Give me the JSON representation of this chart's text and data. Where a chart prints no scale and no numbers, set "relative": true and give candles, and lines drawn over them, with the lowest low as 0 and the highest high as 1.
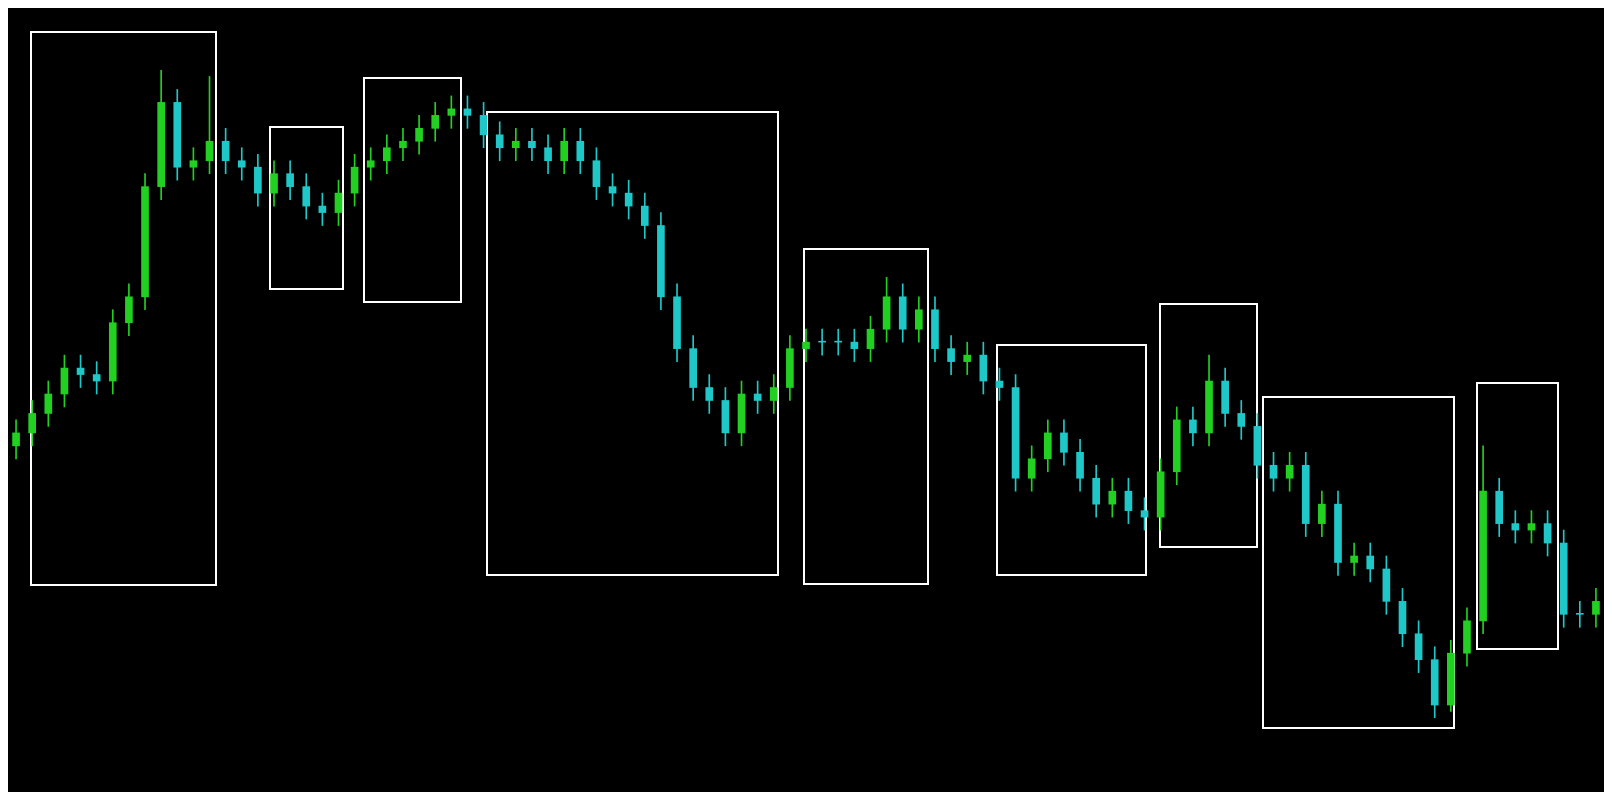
{
  "chart_data": {
    "type": "candlestick",
    "relative": true,
    "grid": false,
    "legend": false,
    "tick_labels": false,
    "colors": [
      "#22d022",
      "#22d022",
      "#22d022",
      "#22d022",
      "#1fc8c8",
      "#1fc8c8",
      "#22d022",
      "#22d022",
      "#22d022",
      "#22d022",
      "#1fc8c8",
      "#22d022",
      "#22d022",
      "#1fc8c8",
      "#1fc8c8",
      "#1fc8c8",
      "#22d022",
      "#1fc8c8",
      "#1fc8c8",
      "#1fc8c8",
      "#22d022",
      "#22d022",
      "#22d022",
      "#22d022",
      "#22d022",
      "#22d022",
      "#22d022",
      "#22d022",
      "#1fc8c8",
      "#1fc8c8",
      "#1fc8c8",
      "#22d022",
      "#1fc8c8",
      "#1fc8c8",
      "#22d022",
      "#1fc8c8",
      "#1fc8c8",
      "#1fc8c8",
      "#1fc8c8",
      "#1fc8c8",
      "#1fc8c8",
      "#1fc8c8",
      "#1fc8c8",
      "#1fc8c8",
      "#1fc8c8",
      "#22d022",
      "#1fc8c8",
      "#22d022",
      "#22d022",
      "#22d022",
      "#1fc8c8",
      "#1fc8c8",
      "#1fc8c8",
      "#22d022",
      "#22d022",
      "#1fc8c8",
      "#22d022",
      "#1fc8c8",
      "#1fc8c8",
      "#22d022",
      "#1fc8c8",
      "#1fc8c8",
      "#1fc8c8",
      "#22d022",
      "#22d022",
      "#1fc8c8",
      "#1fc8c8",
      "#1fc8c8",
      "#22d022",
      "#1fc8c8",
      "#1fc8c8",
      "#22d022",
      "#22d022",
      "#1fc8c8",
      "#22d022",
      "#1fc8c8",
      "#1fc8c8",
      "#1fc8c8",
      "#1fc8c8",
      "#22d022",
      "#1fc8c8",
      "#22d022",
      "#1fc8c8",
      "#22d022",
      "#1fc8c8",
      "#1fc8c8",
      "#1fc8c8",
      "#1fc8c8",
      "#1fc8c8",
      "#22d022",
      "#22d022",
      "#22d022",
      "#1fc8c8",
      "#1fc8c8",
      "#22d022",
      "#1fc8c8",
      "#1fc8c8",
      "#1fc8c8",
      "#22d022"
    ],
    "categories": [
      null,
      null,
      null,
      null,
      null,
      null,
      null,
      null,
      null,
      null,
      null,
      null,
      null,
      null,
      null,
      null,
      null,
      null,
      null,
      null,
      null,
      null,
      null,
      null,
      null,
      null,
      null,
      null,
      null,
      null,
      null,
      null,
      null,
      null,
      null,
      null,
      null,
      null,
      null,
      null,
      null,
      null,
      null,
      null,
      null,
      null,
      null,
      null,
      null,
      null,
      null,
      null,
      null,
      null,
      null,
      null,
      null,
      null,
      null,
      null,
      null,
      null,
      null,
      null,
      null,
      null,
      null,
      null,
      null,
      null,
      null,
      null,
      null,
      null,
      null,
      null,
      null,
      null,
      null,
      null,
      null,
      null,
      null,
      null,
      null,
      null,
      null,
      null,
      null,
      null,
      null,
      null,
      null,
      null,
      null,
      null,
      null,
      null,
      null
    ],
    "ohlc": [
      [
        0.42,
        0.46,
        0.4,
        0.44
      ],
      [
        0.44,
        0.49,
        0.42,
        0.47
      ],
      [
        0.47,
        0.52,
        0.45,
        0.5
      ],
      [
        0.5,
        0.56,
        0.48,
        0.54
      ],
      [
        0.54,
        0.56,
        0.51,
        0.53
      ],
      [
        0.53,
        0.55,
        0.5,
        0.52
      ],
      [
        0.52,
        0.63,
        0.5,
        0.61
      ],
      [
        0.61,
        0.67,
        0.59,
        0.65
      ],
      [
        0.65,
        0.84,
        0.63,
        0.82
      ],
      [
        0.82,
        1,
        0.8,
        0.95
      ],
      [
        0.95,
        0.97,
        0.83,
        0.85
      ],
      [
        0.85,
        0.88,
        0.83,
        0.86
      ],
      [
        0.86,
        0.99,
        0.84,
        0.89
      ],
      [
        0.89,
        0.91,
        0.84,
        0.86
      ],
      [
        0.86,
        0.88,
        0.83,
        0.85
      ],
      [
        0.85,
        0.87,
        0.79,
        0.81
      ],
      [
        0.81,
        0.86,
        0.79,
        0.84
      ],
      [
        0.84,
        0.86,
        0.8,
        0.82
      ],
      [
        0.82,
        0.84,
        0.77,
        0.79
      ],
      [
        0.79,
        0.81,
        0.76,
        0.78
      ],
      [
        0.78,
        0.83,
        0.76,
        0.81
      ],
      [
        0.81,
        0.87,
        0.79,
        0.85
      ],
      [
        0.85,
        0.88,
        0.83,
        0.86
      ],
      [
        0.86,
        0.9,
        0.84,
        0.88
      ],
      [
        0.88,
        0.91,
        0.86,
        0.89
      ],
      [
        0.89,
        0.93,
        0.87,
        0.91
      ],
      [
        0.91,
        0.95,
        0.89,
        0.93
      ],
      [
        0.93,
        0.96,
        0.91,
        0.94
      ],
      [
        0.94,
        0.96,
        0.91,
        0.93
      ],
      [
        0.93,
        0.95,
        0.88,
        0.9
      ],
      [
        0.9,
        0.92,
        0.86,
        0.88
      ],
      [
        0.88,
        0.91,
        0.86,
        0.89
      ],
      [
        0.89,
        0.91,
        0.86,
        0.88
      ],
      [
        0.88,
        0.9,
        0.84,
        0.86
      ],
      [
        0.86,
        0.91,
        0.84,
        0.89
      ],
      [
        0.89,
        0.91,
        0.84,
        0.86
      ],
      [
        0.86,
        0.88,
        0.8,
        0.82
      ],
      [
        0.82,
        0.84,
        0.79,
        0.81
      ],
      [
        0.81,
        0.83,
        0.77,
        0.79
      ],
      [
        0.79,
        0.81,
        0.74,
        0.76
      ],
      [
        0.76,
        0.78,
        0.63,
        0.65
      ],
      [
        0.65,
        0.67,
        0.55,
        0.57
      ],
      [
        0.57,
        0.59,
        0.49,
        0.51
      ],
      [
        0.51,
        0.53,
        0.47,
        0.49
      ],
      [
        0.49,
        0.51,
        0.42,
        0.44
      ],
      [
        0.44,
        0.52,
        0.42,
        0.5
      ],
      [
        0.5,
        0.52,
        0.47,
        0.49
      ],
      [
        0.49,
        0.53,
        0.47,
        0.51
      ],
      [
        0.51,
        0.59,
        0.49,
        0.57
      ],
      [
        0.57,
        0.6,
        0.55,
        0.58
      ],
      [
        0.58,
        0.6,
        0.56,
        0.58
      ],
      [
        0.58,
        0.6,
        0.56,
        0.58
      ],
      [
        0.58,
        0.6,
        0.55,
        0.57
      ],
      [
        0.57,
        0.62,
        0.55,
        0.6
      ],
      [
        0.6,
        0.68,
        0.58,
        0.65
      ],
      [
        0.65,
        0.67,
        0.58,
        0.6
      ],
      [
        0.6,
        0.65,
        0.58,
        0.63
      ],
      [
        0.63,
        0.65,
        0.55,
        0.57
      ],
      [
        0.57,
        0.59,
        0.53,
        0.55
      ],
      [
        0.55,
        0.58,
        0.53,
        0.56
      ],
      [
        0.56,
        0.58,
        0.5,
        0.52
      ],
      [
        0.52,
        0.54,
        0.49,
        0.51
      ],
      [
        0.51,
        0.53,
        0.35,
        0.37
      ],
      [
        0.37,
        0.42,
        0.35,
        0.4
      ],
      [
        0.4,
        0.46,
        0.38,
        0.44
      ],
      [
        0.44,
        0.46,
        0.39,
        0.41
      ],
      [
        0.41,
        0.43,
        0.35,
        0.37
      ],
      [
        0.37,
        0.39,
        0.31,
        0.33
      ],
      [
        0.33,
        0.37,
        0.31,
        0.35
      ],
      [
        0.35,
        0.37,
        0.3,
        0.32
      ],
      [
        0.32,
        0.34,
        0.29,
        0.31
      ],
      [
        0.31,
        0.4,
        0.29,
        0.38
      ],
      [
        0.38,
        0.48,
        0.36,
        0.46
      ],
      [
        0.46,
        0.48,
        0.42,
        0.44
      ],
      [
        0.44,
        0.56,
        0.42,
        0.52
      ],
      [
        0.52,
        0.54,
        0.45,
        0.47
      ],
      [
        0.47,
        0.49,
        0.43,
        0.45
      ],
      [
        0.45,
        0.47,
        0.37,
        0.39
      ],
      [
        0.39,
        0.41,
        0.35,
        0.37
      ],
      [
        0.37,
        0.41,
        0.35,
        0.39
      ],
      [
        0.39,
        0.41,
        0.28,
        0.3
      ],
      [
        0.3,
        0.35,
        0.28,
        0.33
      ],
      [
        0.33,
        0.35,
        0.22,
        0.24
      ],
      [
        0.24,
        0.27,
        0.22,
        0.25
      ],
      [
        0.25,
        0.27,
        0.21,
        0.23
      ],
      [
        0.23,
        0.25,
        0.16,
        0.18
      ],
      [
        0.18,
        0.2,
        0.11,
        0.13
      ],
      [
        0.13,
        0.15,
        0.07,
        0.09
      ],
      [
        0.09,
        0.11,
        0,
        0.02
      ],
      [
        0.02,
        0.12,
        0.01,
        0.1
      ],
      [
        0.1,
        0.17,
        0.08,
        0.15
      ],
      [
        0.15,
        0.42,
        0.13,
        0.35
      ],
      [
        0.35,
        0.37,
        0.28,
        0.3
      ],
      [
        0.3,
        0.32,
        0.27,
        0.29
      ],
      [
        0.29,
        0.32,
        0.27,
        0.3
      ],
      [
        0.3,
        0.32,
        0.25,
        0.27
      ],
      [
        0.27,
        0.29,
        0.14,
        0.16
      ],
      [
        0.16,
        0.18,
        0.14,
        0.16
      ],
      [
        0.16,
        0.2,
        0.14,
        0.18
      ]
    ]
  }
}
